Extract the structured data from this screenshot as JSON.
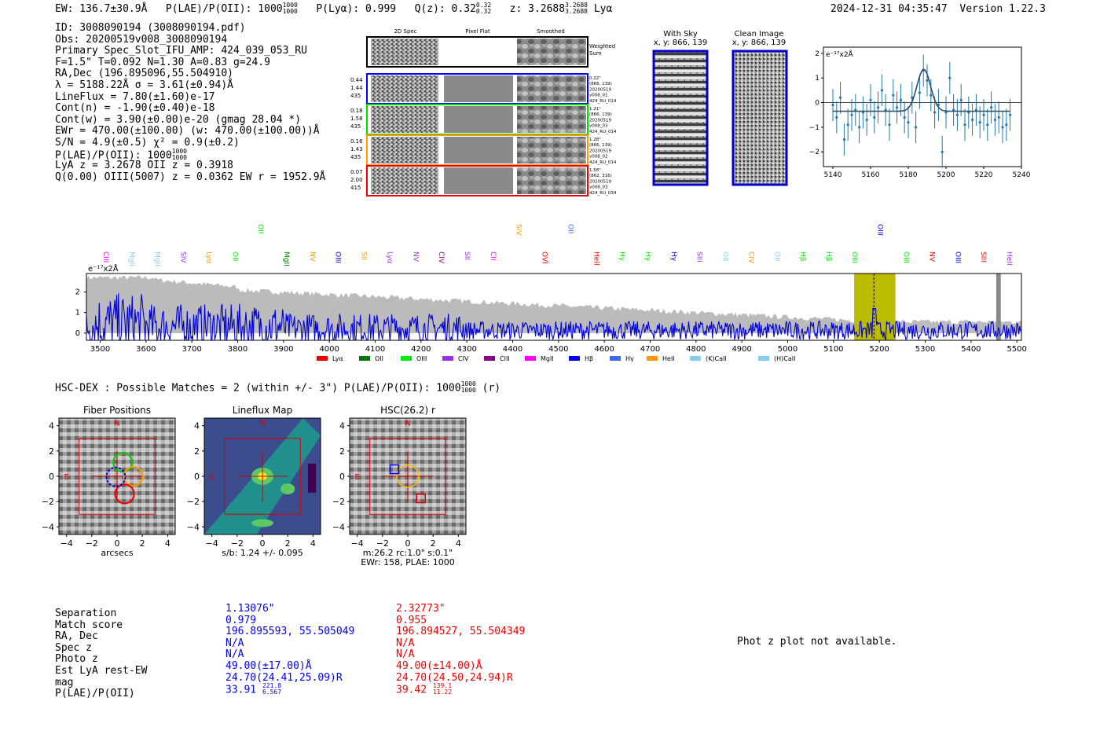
{
  "header": {
    "ew": "EW: 136.7±30.9Å",
    "plae_label": "P(LAE)/P(OII): 1000",
    "plae_hi": "1000",
    "plae_lo": "1000",
    "plya": "P(Lyα): 0.999",
    "qz_label": "Q(z): 0.32",
    "qz_hi": "0.32",
    "qz_lo": "0.32",
    "z_label": "z: 3.2688",
    "z_hi": "3.2688",
    "z_lo": "3.2688",
    "z_line": "Lyα",
    "timestamp": "2024-12-31 04:35:47",
    "version": "Version 1.22.3"
  },
  "info": {
    "id": "ID: 3008090194 (3008090194.pdf)",
    "obs": "Obs: 20200519v008_3008090194",
    "primary": "Primary Spec_Slot_IFU_AMP: 424_039_053_RU",
    "params": "F=1.5\"  T=0.092  N=1.30  A=0.83  g=24.9",
    "radec": "RA,Dec (196.895096,55.504910)",
    "lambda": "λ = 5188.22Å  σ = 3.61(±0.94)Å",
    "lineflux": "LineFlux = 7.80(±1.60)e-17",
    "contn": "Cont(n) = -1.90(±0.40)e-18",
    "contw": "Cont(w) = 3.90(±0.00)e-20 (gmag 28.04 *)",
    "ewr": "EWr = 470.00(±100.00) (w: 470.00(±100.00))Å",
    "sn": "S/N = 4.9(±0.5)  χ² = 0.9(±0.2)",
    "plae_label": "P(LAE)/P(OII): 1000",
    "plae_hi": "1000",
    "plae_lo": "1000",
    "lyaz": "LyA z = 3.2678  OII z = 0.3918",
    "q": "Q(0.00) OIII(5007) z = 0.0362  EW r = 1952.9Å"
  },
  "cutouts": {
    "col_labels": [
      "2D Spec",
      "Pixel Flat",
      "Smoothed"
    ],
    "weighted_sum": "Weighted Sum",
    "rows": [
      {
        "left": [
          "0.44",
          "1.44",
          "435"
        ],
        "right": [
          "0.22\"",
          "(866, 139)",
          "20200519",
          "v008_01",
          "424_RU_014"
        ],
        "color": "#0000ff"
      },
      {
        "left": [
          "0.18",
          "1.58",
          "435"
        ],
        "right": [
          "1.21\"",
          "(866, 139)",
          "20200519",
          "v008_03",
          "424_RU_014"
        ],
        "color": "#00dd00"
      },
      {
        "left": [
          "0.16",
          "1.43",
          "435"
        ],
        "right": [
          "1.28\"",
          "(866, 139)",
          "20200519",
          "v008_02",
          "424_RU_014"
        ],
        "color": "#ff9900"
      },
      {
        "left": [
          "0.07",
          "2.00",
          "415"
        ],
        "right": [
          "1.58\"",
          "(862, 316)",
          "20200519",
          "v008_03",
          "424_RU_034"
        ],
        "color": "#ee0000"
      }
    ],
    "with_sky_title": "With Sky",
    "with_sky_xy": "x, y: 866, 139",
    "clean_title": "Clean Image",
    "clean_xy": "x, y: 866, 139"
  },
  "zoom_plot": {
    "ylabel": "e⁻¹⁷x2Å",
    "xticks": [
      "5140",
      "5160",
      "5180",
      "5200",
      "5220",
      "5240"
    ],
    "yticks": [
      "2",
      "1",
      "0",
      "−1",
      "−2"
    ]
  },
  "spectrum": {
    "ylabel": "e⁻¹⁷x2Å",
    "xticks": [
      "3500",
      "3600",
      "3700",
      "3800",
      "3900",
      "4000",
      "4100",
      "4200",
      "4300",
      "4400",
      "4500",
      "4600",
      "4700",
      "4800",
      "4900",
      "5000",
      "5100",
      "5200",
      "5300",
      "5400",
      "5500"
    ],
    "yticks": [
      "2",
      "1",
      "0"
    ],
    "legend": [
      {
        "label": "Lyα",
        "color": "#ee0000"
      },
      {
        "label": "OII",
        "color": "#007700"
      },
      {
        "label": "OIII",
        "color": "#00ee00"
      },
      {
        "label": "CIV",
        "color": "#9933ee"
      },
      {
        "label": "CIII",
        "color": "#880088"
      },
      {
        "label": "MgII",
        "color": "#ff00ff"
      },
      {
        "label": "Hβ",
        "color": "#0000ee"
      },
      {
        "label": "Hγ",
        "color": "#4466ee"
      },
      {
        "label": "HeII",
        "color": "#ff9900"
      },
      {
        "label": "(K)CaII",
        "color": "#88ccee"
      },
      {
        "label": "(H)CaII",
        "color": "#88ccee"
      }
    ],
    "line_labels": [
      {
        "t": "CIII",
        "c": "#ff00ff",
        "row": 1
      },
      {
        "t": "MgII",
        "c": "#88ccee",
        "row": 1
      },
      {
        "t": "MgII",
        "c": "#88ccee",
        "row": 1
      },
      {
        "t": "SIV",
        "c": "#9933ee",
        "row": 1
      },
      {
        "t": "Lyα",
        "c": "#ff9900",
        "row": 1
      },
      {
        "t": "OII",
        "c": "#00ee00",
        "row": 1
      },
      {
        "t": "OII",
        "c": "#00ee00",
        "row": 0
      },
      {
        "t": "MgII",
        "c": "#007700",
        "row": 1
      },
      {
        "t": "NV",
        "c": "#ff9900",
        "row": 1
      },
      {
        "t": "OIII",
        "c": "#0000ee",
        "row": 1
      },
      {
        "t": "SII",
        "c": "#ff9900",
        "row": 1
      },
      {
        "t": "Lyα",
        "c": "#9933ee",
        "row": 1
      },
      {
        "t": "NV",
        "c": "#9933ee",
        "row": 1
      },
      {
        "t": "CIV",
        "c": "#880088",
        "row": 1
      },
      {
        "t": "SII",
        "c": "#9933ee",
        "row": 1
      },
      {
        "t": "CII",
        "c": "#ff00ff",
        "row": 1
      },
      {
        "t": "SIV",
        "c": "#ff9900",
        "row": 0
      },
      {
        "t": "OVI",
        "c": "#ee0000",
        "row": 1
      },
      {
        "t": "OII",
        "c": "#4466ee",
        "row": 0
      },
      {
        "t": "HeII",
        "c": "#ee0000",
        "row": 1
      },
      {
        "t": "Hγ",
        "c": "#00ee00",
        "row": 1
      },
      {
        "t": "Hγ",
        "c": "#00ee00",
        "row": 1
      },
      {
        "t": "Hγ",
        "c": "#0000ee",
        "row": 1
      },
      {
        "t": "SIII",
        "c": "#9933ee",
        "row": 1
      },
      {
        "t": "OII",
        "c": "#88ccee",
        "row": 1
      },
      {
        "t": "CIV",
        "c": "#ff9900",
        "row": 1
      },
      {
        "t": "OII",
        "c": "#88ccee",
        "row": 1
      },
      {
        "t": "Hβ",
        "c": "#00ee00",
        "row": 1
      },
      {
        "t": "Hβ",
        "c": "#00ee00",
        "row": 1
      },
      {
        "t": "OIII",
        "c": "#00ee00",
        "row": 1
      },
      {
        "t": "OIII",
        "c": "#0000ee",
        "row": 0
      },
      {
        "t": "OIII",
        "c": "#00ee00",
        "row": 1
      },
      {
        "t": "NV",
        "c": "#ee0000",
        "row": 1
      },
      {
        "t": "OIII",
        "c": "#0000ee",
        "row": 1
      },
      {
        "t": "SIII",
        "c": "#ee0000",
        "row": 1
      },
      {
        "t": "HeII",
        "c": "#9933ee",
        "row": 1
      }
    ]
  },
  "hsc": {
    "summary_label": "HSC-DEX : Possible Matches = 2 (within +/- 3\")  P(LAE)/P(OII): 1000",
    "summary_hi": "1000",
    "summary_lo": "1000",
    "summary_band": "(r)",
    "panel1_title": "Fiber Positions",
    "panel2_title": "Lineflux Map",
    "panel3_title": "HSC(26.2) r",
    "ticks": [
      "4",
      "2",
      "0",
      "−2",
      "−4"
    ],
    "xticks": [
      "−4",
      "−2",
      "0",
      "2",
      "4"
    ],
    "north": "N",
    "east": "E",
    "panel1_xlabel": "arcsecs",
    "panel2_xlabel": "s/b: 1.24 +/- 0.095",
    "panel3_xlabel1": "m:26.2 rc:1.0\"  s:0.1\"",
    "panel3_xlabel2": "EWr: 158, PLAE: 1000"
  },
  "matches": {
    "labels": [
      "Separation",
      "Match score",
      "RA, Dec",
      "Spec z",
      "Photo z",
      "Est LyA rest-EW",
      "mag",
      "P(LAE)/P(OII)"
    ],
    "m1": [
      "1.13076\"",
      "0.979",
      "196.895593, 55.505049",
      "N/A",
      "N/A",
      "49.00(±17.00)Å",
      "24.70(24.41,25.09)R"
    ],
    "m1_plae": "33.91",
    "m1_plae_hi": "221.8",
    "m1_plae_lo": "6.567",
    "m2": [
      "2.32773\"",
      "0.955",
      "196.894527, 55.504349",
      "N/A",
      "N/A",
      "49.00(±14.00)Å",
      "24.70(24.50,24.94)R"
    ],
    "m2_plae": "39.42",
    "m2_plae_hi": "139.1",
    "m2_plae_lo": "11.22",
    "photz_note": "Phot z plot not available."
  },
  "chart_data": [
    {
      "type": "line",
      "title": "",
      "xlabel": "",
      "ylabel": "e⁻¹⁷x2Å",
      "xlim": [
        3470,
        5510
      ],
      "ylim": [
        -0.35,
        2.9
      ],
      "highlight_band": [
        5145,
        5235
      ],
      "line_center": 5188.22,
      "series": [
        {
          "name": "flux",
          "color": "#0000dd"
        },
        {
          "name": "error",
          "color": "#bbbbbb"
        }
      ]
    },
    {
      "type": "scatter",
      "title": "",
      "xlim": [
        5135,
        5240
      ],
      "ylim": [
        -2.6,
        2.25
      ],
      "points_x": [
        5140,
        5142,
        5144,
        5146,
        5148,
        5150,
        5152,
        5154,
        5156,
        5158,
        5160,
        5162,
        5164,
        5166,
        5168,
        5170,
        5172,
        5174,
        5176,
        5178,
        5180,
        5182,
        5184,
        5186,
        5188,
        5190,
        5192,
        5194,
        5196,
        5198,
        5200,
        5202,
        5204,
        5206,
        5208,
        5210,
        5212,
        5214,
        5216,
        5218,
        5220,
        5222,
        5224,
        5226,
        5228,
        5230,
        5232,
        5234
      ],
      "points_y": [
        -0.1,
        -0.6,
        0.2,
        -1.5,
        -0.9,
        -0.5,
        -0.3,
        -1.0,
        -0.4,
        -0.7,
        0.1,
        -0.6,
        -0.2,
        0.5,
        -0.3,
        -0.9,
        0.3,
        -0.2,
        0.1,
        -0.6,
        -0.8,
        0.2,
        -1.0,
        0.4,
        1.3,
        0.9,
        0.3,
        -0.4,
        -0.1,
        -2.0,
        -0.4,
        1.0,
        -0.3,
        -0.5,
        0.1,
        -0.9,
        -0.4,
        -0.7,
        -0.3,
        -0.8,
        -0.5,
        -0.9,
        -0.2,
        -0.7,
        -0.6,
        -1.0,
        -0.9,
        -0.5
      ],
      "errors": 0.65,
      "gaussian": {
        "center": 5188.2,
        "sigma": 3.6,
        "amplitude": 1.7,
        "baseline": -0.35
      }
    }
  ]
}
